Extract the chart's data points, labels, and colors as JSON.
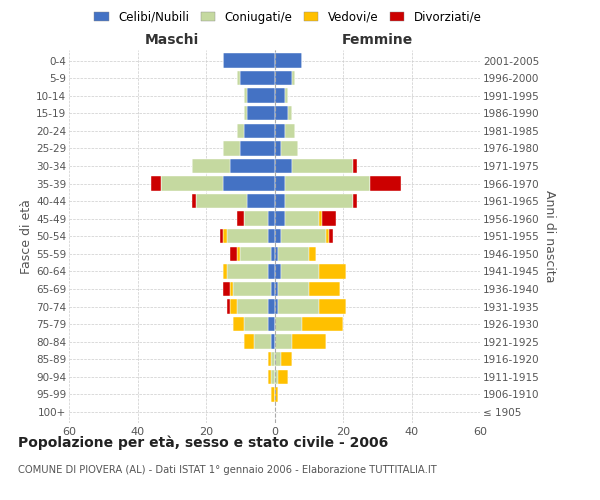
{
  "age_groups": [
    "100+",
    "95-99",
    "90-94",
    "85-89",
    "80-84",
    "75-79",
    "70-74",
    "65-69",
    "60-64",
    "55-59",
    "50-54",
    "45-49",
    "40-44",
    "35-39",
    "30-34",
    "25-29",
    "20-24",
    "15-19",
    "10-14",
    "5-9",
    "0-4"
  ],
  "birth_years": [
    "≤ 1905",
    "1906-1910",
    "1911-1915",
    "1916-1920",
    "1921-1925",
    "1926-1930",
    "1931-1935",
    "1936-1940",
    "1941-1945",
    "1946-1950",
    "1951-1955",
    "1956-1960",
    "1961-1965",
    "1966-1970",
    "1971-1975",
    "1976-1980",
    "1981-1985",
    "1986-1990",
    "1991-1995",
    "1996-2000",
    "2001-2005"
  ],
  "males_celibe": [
    0,
    0,
    0,
    0,
    1,
    2,
    2,
    1,
    2,
    1,
    2,
    2,
    8,
    15,
    13,
    10,
    9,
    8,
    8,
    10,
    15
  ],
  "males_coniugato": [
    0,
    0,
    1,
    1,
    5,
    7,
    9,
    11,
    12,
    9,
    12,
    7,
    15,
    18,
    11,
    5,
    2,
    1,
    1,
    1,
    0
  ],
  "males_vedovo": [
    0,
    1,
    1,
    1,
    3,
    3,
    2,
    1,
    1,
    1,
    1,
    0,
    0,
    0,
    0,
    0,
    0,
    0,
    0,
    0,
    0
  ],
  "males_divorziato": [
    0,
    0,
    0,
    0,
    0,
    0,
    1,
    2,
    0,
    2,
    1,
    2,
    1,
    3,
    0,
    0,
    0,
    0,
    0,
    0,
    0
  ],
  "females_celibe": [
    0,
    0,
    0,
    0,
    0,
    0,
    1,
    1,
    2,
    1,
    2,
    3,
    3,
    3,
    5,
    2,
    3,
    4,
    3,
    5,
    8
  ],
  "females_coniugato": [
    0,
    0,
    1,
    2,
    5,
    8,
    12,
    9,
    11,
    9,
    13,
    10,
    20,
    25,
    18,
    5,
    3,
    1,
    1,
    1,
    0
  ],
  "females_vedovo": [
    0,
    1,
    3,
    3,
    10,
    12,
    8,
    9,
    8,
    2,
    1,
    1,
    0,
    0,
    0,
    0,
    0,
    0,
    0,
    0,
    0
  ],
  "females_divorziato": [
    0,
    0,
    0,
    0,
    0,
    0,
    0,
    0,
    0,
    0,
    1,
    4,
    1,
    9,
    1,
    0,
    0,
    0,
    0,
    0,
    0
  ],
  "colors": {
    "celibe": "#4472c4",
    "coniugato": "#c5d9a0",
    "vedovo": "#ffc000",
    "divorziato": "#cc0000"
  },
  "xlim": 60,
  "title": "Popolazione per età, sesso e stato civile - 2006",
  "subtitle": "COMUNE DI PIOVERA (AL) - Dati ISTAT 1° gennaio 2006 - Elaborazione TUTTITALIA.IT",
  "legend_labels": [
    "Celibi/Nubili",
    "Coniugati/e",
    "Vedovi/e",
    "Divorziati/e"
  ],
  "ylabel_left": "Fasce di età",
  "ylabel_right": "Anni di nascita",
  "header_left": "Maschi",
  "header_right": "Femmine",
  "bg_color": "#ffffff",
  "grid_color": "#cccccc"
}
